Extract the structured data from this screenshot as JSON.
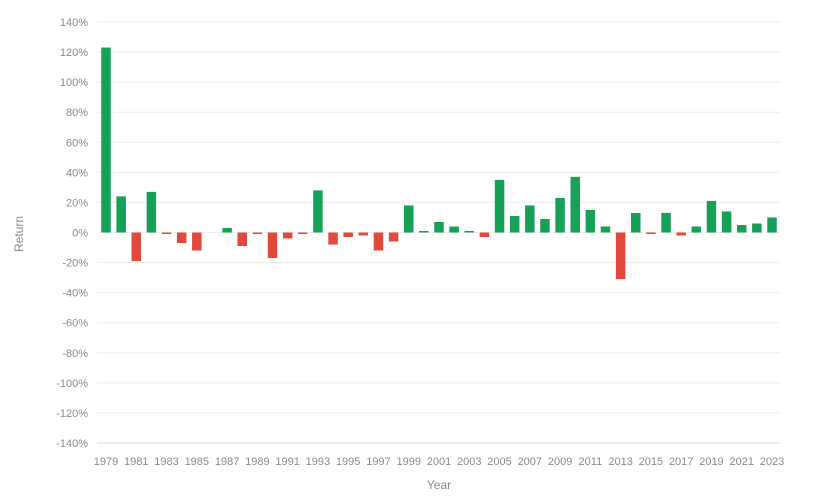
{
  "chart_data": {
    "type": "bar",
    "title": "",
    "xlabel": "Year",
    "ylabel": "Return",
    "ylim": [
      -140,
      140
    ],
    "y_tick_step": 20,
    "y_tick_suffix": "%",
    "grid": "horizontal",
    "colors": {
      "positive": "#16a058",
      "negative": "#e04a3c",
      "axis": "#d9d9d9",
      "text": "#8a8a8a"
    },
    "categories": [
      "1979",
      "1980",
      "1981",
      "1982",
      "1983",
      "1984",
      "1985",
      "1986",
      "1987",
      "1988",
      "1989",
      "1990",
      "1991",
      "1992",
      "1993",
      "1994",
      "1995",
      "1996",
      "1997",
      "1998",
      "1999",
      "2000",
      "2001",
      "2002",
      "2003",
      "2004",
      "2005",
      "2006",
      "2007",
      "2008",
      "2009",
      "2010",
      "2011",
      "2012",
      "2013",
      "2014",
      "2015",
      "2016",
      "2017",
      "2018",
      "2019",
      "2020",
      "2021",
      "2022",
      "2023"
    ],
    "x_tick_labels": [
      "1979",
      "1981",
      "1983",
      "1985",
      "1987",
      "1989",
      "1991",
      "1993",
      "1995",
      "1997",
      "1999",
      "2001",
      "2003",
      "2005",
      "2007",
      "2009",
      "2011",
      "2013",
      "2015",
      "2017",
      "2019",
      "2021",
      "2023"
    ],
    "values": [
      123,
      24,
      -19,
      27,
      -1,
      -7,
      -12,
      0,
      3,
      -9,
      -1,
      -17,
      -4,
      -1,
      28,
      -8,
      -3,
      -2,
      -12,
      -6,
      18,
      1,
      7,
      4,
      1,
      -3,
      35,
      11,
      18,
      9,
      23,
      37,
      15,
      4,
      -31,
      13,
      -1,
      13,
      -2,
      4,
      21,
      14,
      5,
      6,
      10
    ]
  }
}
